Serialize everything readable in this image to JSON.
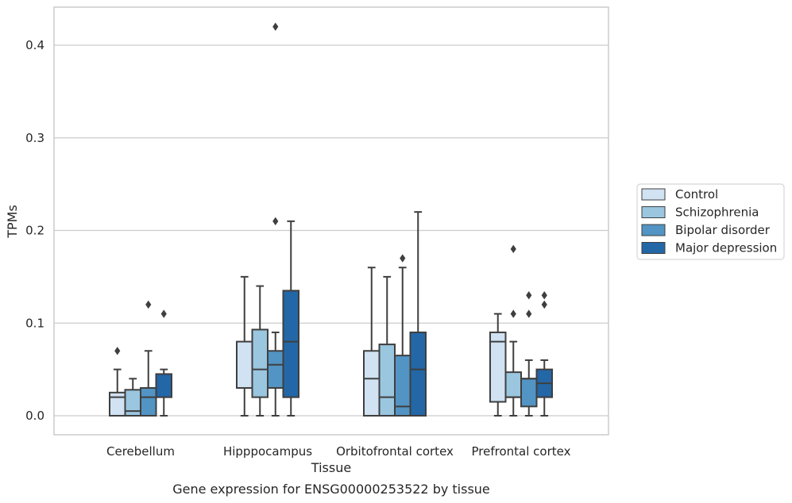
{
  "chart_data": {
    "type": "boxplot",
    "xlabel": "Tissue",
    "ylabel": "TPMs",
    "caption": "Gene expression for ENSG00000253522 by tissue",
    "ylim": [
      -0.02,
      0.443
    ],
    "yticks": [
      0.0,
      0.1,
      0.2,
      0.3,
      0.4
    ],
    "ytick_labels": [
      "0.0",
      "0.1",
      "0.2",
      "0.3",
      "0.4"
    ],
    "grid": "horizontal",
    "legend_position": "right-outside",
    "categories": [
      "Cerebellum",
      "Hipppocampus",
      "Orbitofrontal cortex",
      "Prefrontal cortex"
    ],
    "series": [
      {
        "name": "Control",
        "color": "#d1e2f2",
        "boxes": [
          {
            "whislo": 0.0,
            "q1": 0.0,
            "med": 0.02,
            "q3": 0.025,
            "whishi": 0.05,
            "fliers": [
              0.07
            ]
          },
          {
            "whislo": 0.0,
            "q1": 0.03,
            "med": 0.03,
            "q3": 0.08,
            "whishi": 0.15,
            "fliers": []
          },
          {
            "whislo": 0.0,
            "q1": 0.0,
            "med": 0.04,
            "q3": 0.07,
            "whishi": 0.16,
            "fliers": []
          },
          {
            "whislo": 0.0,
            "q1": 0.015,
            "med": 0.08,
            "q3": 0.09,
            "whishi": 0.11,
            "fliers": []
          }
        ]
      },
      {
        "name": "Schizophrenia",
        "color": "#9ac6df",
        "boxes": [
          {
            "whislo": 0.0,
            "q1": 0.0,
            "med": 0.005,
            "q3": 0.028,
            "whishi": 0.04,
            "fliers": []
          },
          {
            "whislo": 0.0,
            "q1": 0.02,
            "med": 0.05,
            "q3": 0.093,
            "whishi": 0.14,
            "fliers": []
          },
          {
            "whislo": 0.0,
            "q1": 0.0,
            "med": 0.02,
            "q3": 0.077,
            "whishi": 0.15,
            "fliers": []
          },
          {
            "whislo": 0.0,
            "q1": 0.02,
            "med": 0.02,
            "q3": 0.047,
            "whishi": 0.08,
            "fliers": [
              0.11,
              0.18
            ]
          }
        ]
      },
      {
        "name": "Bipolar disorder",
        "color": "#5294c3",
        "boxes": [
          {
            "whislo": 0.0,
            "q1": 0.0,
            "med": 0.02,
            "q3": 0.03,
            "whishi": 0.07,
            "fliers": [
              0.12
            ]
          },
          {
            "whislo": 0.0,
            "q1": 0.03,
            "med": 0.055,
            "q3": 0.07,
            "whishi": 0.09,
            "fliers": [
              0.21,
              0.42
            ]
          },
          {
            "whislo": 0.0,
            "q1": 0.0,
            "med": 0.01,
            "q3": 0.065,
            "whishi": 0.16,
            "fliers": [
              0.17
            ]
          },
          {
            "whislo": 0.0,
            "q1": 0.01,
            "med": 0.04,
            "q3": 0.04,
            "whishi": 0.06,
            "fliers": [
              0.11,
              0.13
            ]
          }
        ]
      },
      {
        "name": "Major depression",
        "color": "#2367a7",
        "boxes": [
          {
            "whislo": 0.0,
            "q1": 0.02,
            "med": 0.045,
            "q3": 0.045,
            "whishi": 0.05,
            "fliers": [
              0.11
            ]
          },
          {
            "whislo": 0.0,
            "q1": 0.02,
            "med": 0.08,
            "q3": 0.135,
            "whishi": 0.21,
            "fliers": []
          },
          {
            "whislo": 0.0,
            "q1": 0.0,
            "med": 0.05,
            "q3": 0.09,
            "whishi": 0.22,
            "fliers": []
          },
          {
            "whislo": 0.0,
            "q1": 0.02,
            "med": 0.035,
            "q3": 0.05,
            "whishi": 0.06,
            "fliers": [
              0.12,
              0.13
            ]
          }
        ]
      }
    ]
  }
}
